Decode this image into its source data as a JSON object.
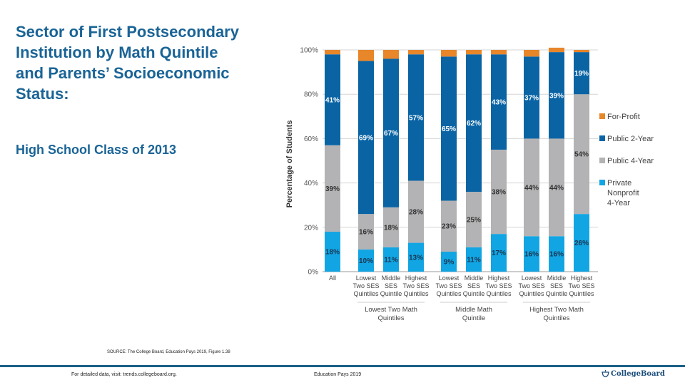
{
  "title": "Sector of First Postsecondary Institution by Math Quintile and Parents’ Socioeconomic Status:",
  "subtitle": "High School Class of 2013",
  "source": "SOURCE: The College Board, Education Pays 2019, Figure 1.38",
  "footer": {
    "left": "For detailed data, visit: trends.collegeboard.org.",
    "center": "Education Pays 2019",
    "logo_text": "CollegeBoard",
    "logo_icon": "acorn-icon"
  },
  "colors": {
    "for_profit": "#e8862a",
    "public_2yr": "#0a64a4",
    "public_4yr": "#b3b3b5",
    "private_nonprofit": "#12a5e3",
    "title": "#1a6496"
  },
  "chart_data": {
    "type": "bar",
    "stacked": true,
    "ylabel": "Percentage of Students",
    "xlabel": "",
    "ylim": [
      0,
      100
    ],
    "yticks": [
      "0%",
      "20%",
      "40%",
      "60%",
      "80%",
      "100%"
    ],
    "grid": true,
    "legend_position": "right",
    "categories": [
      "All",
      "Lowest Two SES Quintiles",
      "Middle SES Quintile",
      "Highest Two SES Quintiles",
      "Lowest Two SES Quintiles",
      "Middle SES Quintile",
      "Highest Two SES Quintiles",
      "Lowest Two SES Quintiles",
      "Middle SES Quintile",
      "Highest Two SES Quintiles"
    ],
    "category_lines": [
      [
        "All"
      ],
      [
        "Lowest",
        "Two SES",
        "Quintiles"
      ],
      [
        "Middle",
        "SES",
        "Quintile"
      ],
      [
        "Highest",
        "Two SES",
        "Quintiles"
      ],
      [
        "Lowest",
        "Two SES",
        "Quintiles"
      ],
      [
        "Middle",
        "SES",
        "Quintile"
      ],
      [
        "Highest",
        "Two SES",
        "Quintiles"
      ],
      [
        "Lowest",
        "Two SES",
        "Quintiles"
      ],
      [
        "Middle",
        "SES",
        "Quintile"
      ],
      [
        "Highest",
        "Two SES",
        "Quintiles"
      ]
    ],
    "groups": [
      {
        "label_lines": [
          "Lowest Two Math",
          "Quintiles"
        ],
        "members": [
          1,
          2,
          3
        ]
      },
      {
        "label_lines": [
          "Middle Math",
          "Quintile"
        ],
        "members": [
          4,
          5,
          6
        ]
      },
      {
        "label_lines": [
          "Highest Two Math",
          "Quintiles"
        ],
        "members": [
          7,
          8,
          9
        ]
      }
    ],
    "series": [
      {
        "name": "Private Nonprofit 4-Year",
        "legend_lines": [
          "Private",
          "Nonprofit",
          "4-Year"
        ],
        "color_key": "private_nonprofit",
        "label_color": "#1a3550",
        "values": [
          18,
          10,
          11,
          13,
          9,
          11,
          17,
          16,
          16,
          26
        ],
        "labeled": true
      },
      {
        "name": "Public 4-Year",
        "legend_lines": [
          "Public 4-Year"
        ],
        "color_key": "public_4yr",
        "label_color": "#333333",
        "values": [
          39,
          16,
          18,
          28,
          23,
          25,
          38,
          44,
          44,
          54
        ],
        "labeled": true
      },
      {
        "name": "Public 2-Year",
        "legend_lines": [
          "Public 2-Year"
        ],
        "color_key": "public_2yr",
        "label_color": "#ffffff",
        "values": [
          41,
          69,
          67,
          57,
          65,
          62,
          43,
          37,
          39,
          19
        ],
        "labeled": true
      },
      {
        "name": "For-Profit",
        "legend_lines": [
          "For-Profit"
        ],
        "color_key": "for_profit",
        "label_color": "#ffffff",
        "values": [
          2,
          5,
          4,
          2,
          3,
          2,
          2,
          3,
          2,
          1
        ],
        "labeled": false
      }
    ]
  }
}
